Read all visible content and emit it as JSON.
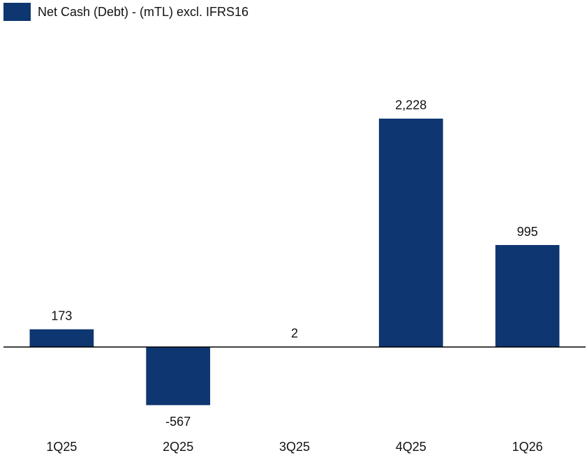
{
  "chart_data": {
    "type": "bar",
    "categories": [
      "1Q25",
      "2Q25",
      "3Q25",
      "4Q25",
      "1Q26"
    ],
    "series": [
      {
        "name": "Net Cash (Debt) - (mTL) excl. IFRS16",
        "color": "#0e3670",
        "values": [
          173,
          -567,
          2,
          2228,
          995
        ],
        "value_labels": [
          "173",
          "-567",
          "2",
          "2,228",
          "995"
        ]
      }
    ],
    "ylim": [
      -1000,
      2500
    ],
    "legend": "top-left"
  }
}
